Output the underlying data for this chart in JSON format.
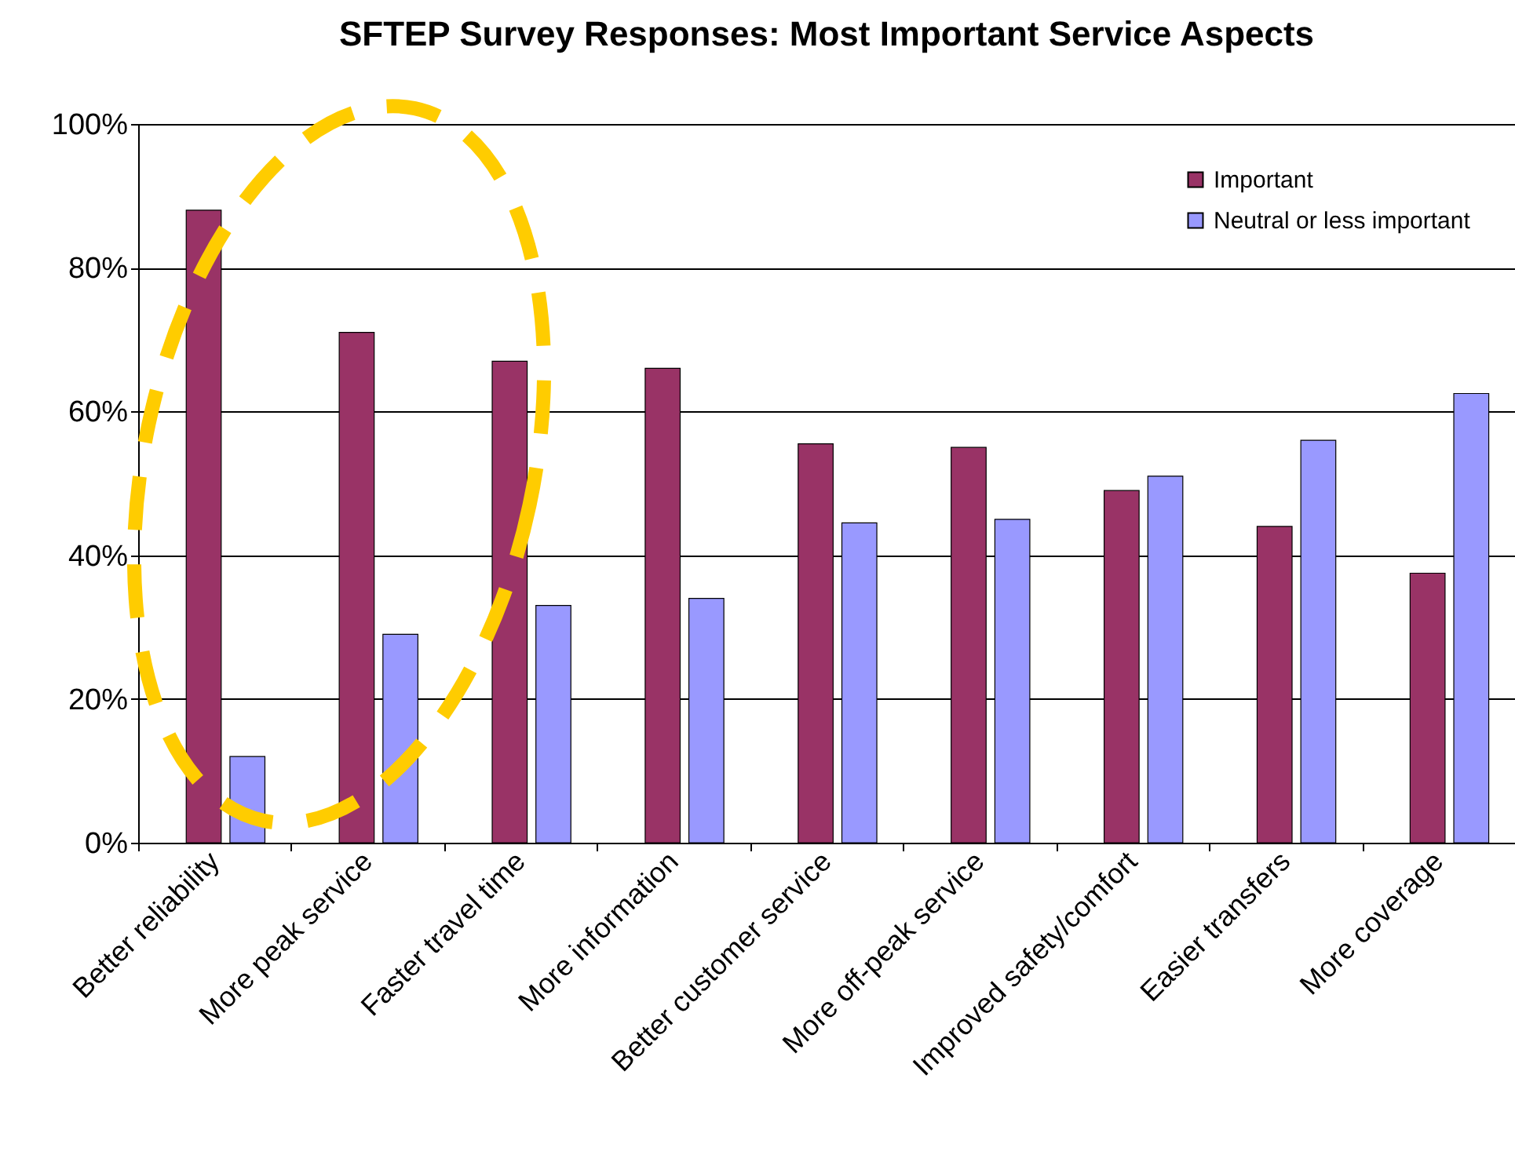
{
  "chart_data": {
    "type": "bar",
    "title": "SFTEP Survey Responses: Most Important Service Aspects",
    "categories": [
      "Better reliability",
      "More peak service",
      "Faster travel time",
      "More information",
      "Better customer service",
      "More off-peak service",
      "Improved safety/comfort",
      "Easier transfers",
      "More coverage"
    ],
    "series": [
      {
        "name": "Important",
        "color": "#993366",
        "values": [
          88,
          71,
          67,
          66,
          55.5,
          55,
          49,
          44,
          37.5
        ]
      },
      {
        "name": "Neutral or less important",
        "color": "#9999ff",
        "values": [
          12,
          29,
          33,
          34,
          44.5,
          45,
          51,
          56,
          62.5
        ]
      }
    ],
    "ylim": [
      0,
      100
    ],
    "yticks": [
      {
        "value": 0,
        "label": "0%"
      },
      {
        "value": 20,
        "label": "20%"
      },
      {
        "value": 40,
        "label": "40%"
      },
      {
        "value": 60,
        "label": "60%"
      },
      {
        "value": 80,
        "label": "80%"
      },
      {
        "value": 100,
        "label": "100%"
      }
    ],
    "grid": "y",
    "legend": "top right"
  }
}
